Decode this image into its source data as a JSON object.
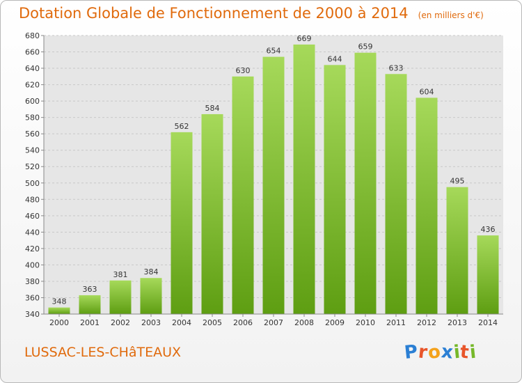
{
  "title": "Dotation Globale de Fonctionnement de 2000 à 2014",
  "unit_note": "(en milliers d'€)",
  "commune": "LUSSAC-LES-CHâTEAUX",
  "logo": {
    "text": "Proxiti",
    "letters": [
      "P",
      "r",
      "o",
      "x",
      "i",
      "t",
      "i"
    ],
    "colors": [
      "#2b7fd4",
      "#e8552a",
      "#f4a21b",
      "#2b7fd4",
      "#76b82a",
      "#e8552a",
      "#76b82a"
    ]
  },
  "chart_data": {
    "type": "bar",
    "categories": [
      "2000",
      "2001",
      "2002",
      "2003",
      "2004",
      "2005",
      "2006",
      "2007",
      "2008",
      "2009",
      "2010",
      "2011",
      "2012",
      "2013",
      "2014"
    ],
    "values": [
      348,
      363,
      381,
      384,
      562,
      584,
      630,
      654,
      669,
      644,
      659,
      633,
      604,
      495,
      436
    ],
    "title": "Dotation Globale de Fonctionnement de 2000 à 2014",
    "xlabel": "",
    "ylabel": "",
    "ylim": [
      340,
      680
    ],
    "yticks": [
      340,
      360,
      380,
      400,
      420,
      440,
      460,
      480,
      500,
      520,
      540,
      560,
      580,
      600,
      620,
      640,
      660,
      680
    ],
    "grid": true,
    "bar_color": "#7cbf2a"
  }
}
